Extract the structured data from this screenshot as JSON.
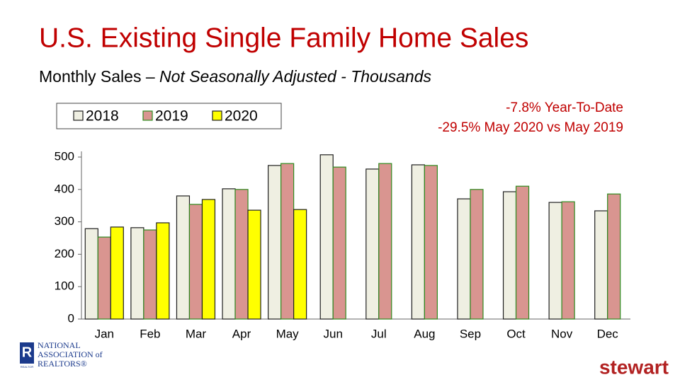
{
  "chart_data": {
    "type": "bar",
    "title": "U.S. Existing Single Family Home Sales",
    "subtitle": [
      "Monthly Sales –",
      "Not Seasonally Adjusted - Thousands"
    ],
    "annotations": [
      "-7.8% Year-To-Date",
      "-29.5% May 2020 vs May 2019"
    ],
    "categories": [
      "Jan",
      "Feb",
      "Mar",
      "Apr",
      "May",
      "Jun",
      "Jul",
      "Aug",
      "Sep",
      "Oct",
      "Nov",
      "Dec"
    ],
    "series": [
      {
        "name": "2018",
        "color": "#efefe2",
        "edgecolor": "#1f1f1f",
        "values": [
          279,
          282,
          380,
          402,
          474,
          507,
          463,
          476,
          371,
          393,
          360,
          334
        ]
      },
      {
        "name": "2019",
        "color": "#d99590",
        "edgecolor": "#2e8b1e",
        "values": [
          253,
          275,
          354,
          400,
          480,
          469,
          480,
          474,
          400,
          410,
          362,
          386
        ]
      },
      {
        "name": "2020",
        "color": "#ffff00",
        "edgecolor": "#1f1f1f",
        "values": [
          284,
          297,
          369,
          336,
          338,
          null,
          null,
          null,
          null,
          null,
          null,
          null
        ]
      }
    ],
    "ylim": [
      0,
      500
    ],
    "yticks": [
      0,
      100,
      200,
      300,
      400,
      500
    ],
    "grid": false,
    "legend": "upper left"
  },
  "logos": {
    "nar": [
      "NATIONAL",
      "ASSOCIATION of",
      "REALTORS®"
    ],
    "nar_badge": "REALTOR",
    "stewart": "stewart"
  }
}
